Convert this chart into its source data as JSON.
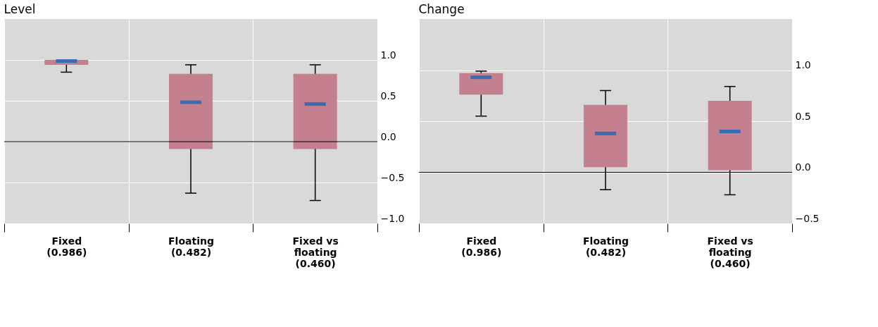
{
  "chart_data": [
    {
      "type": "box",
      "title": "Level",
      "categories": [
        "Fixed\n(0.986)",
        "Floating\n(0.482)",
        "Fixed vs\nfloating\n(0.460)"
      ],
      "series": [
        {
          "color": "#c4808e",
          "boxes": [
            {
              "low": 0.85,
              "q1": 0.94,
              "median": 0.986,
              "q3": 1.0,
              "high": 1.0
            },
            {
              "low": -0.63,
              "q1": -0.09,
              "median": 0.482,
              "q3": 0.83,
              "high": 0.94
            },
            {
              "low": -0.72,
              "q1": -0.09,
              "median": 0.46,
              "q3": 0.83,
              "high": 0.94
            }
          ]
        }
      ],
      "ylim": [
        -1.0,
        1.5
      ],
      "yticks": [
        {
          "value": -1,
          "label": "−1.0"
        },
        {
          "value": -0.5,
          "label": "−0.5"
        },
        {
          "value": 0,
          "label": "0.0"
        },
        {
          "value": 0.5,
          "label": "0.5"
        },
        {
          "value": 1,
          "label": "1.0"
        }
      ],
      "ref_lines": [
        {
          "axis": "y",
          "value": 0,
          "color": "#000000"
        }
      ],
      "grid": true
    },
    {
      "type": "box",
      "title": "Change",
      "categories": [
        "Fixed\n(0.986)",
        "Floating\n(0.482)",
        "Fixed vs\nfloating\n(0.460)"
      ],
      "series": [
        {
          "color": "#c4808e",
          "boxes": [
            {
              "low": 0.55,
              "q1": 0.76,
              "median": 0.93,
              "q3": 0.97,
              "high": 0.99
            },
            {
              "low": -0.17,
              "q1": 0.05,
              "median": 0.38,
              "q3": 0.66,
              "high": 0.8
            },
            {
              "low": -0.22,
              "q1": 0.02,
              "median": 0.4,
              "q3": 0.7,
              "high": 0.84
            }
          ]
        }
      ],
      "ylim": [
        -0.5,
        1.5
      ],
      "yticks": [
        {
          "value": -0.5,
          "label": "−0.5"
        },
        {
          "value": 0,
          "label": "0.0"
        },
        {
          "value": 0.5,
          "label": "0.5"
        },
        {
          "value": 1,
          "label": "1.0"
        }
      ],
      "ref_lines": [
        {
          "axis": "y",
          "value": 0,
          "color": "#000000"
        }
      ],
      "grid": true
    }
  ]
}
